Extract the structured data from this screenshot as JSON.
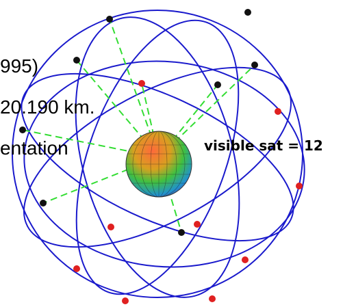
{
  "texts": {
    "line1": "995)",
    "line2": "20.190 km.",
    "line3": "entation",
    "visible": "visible sat = 12"
  }
}
